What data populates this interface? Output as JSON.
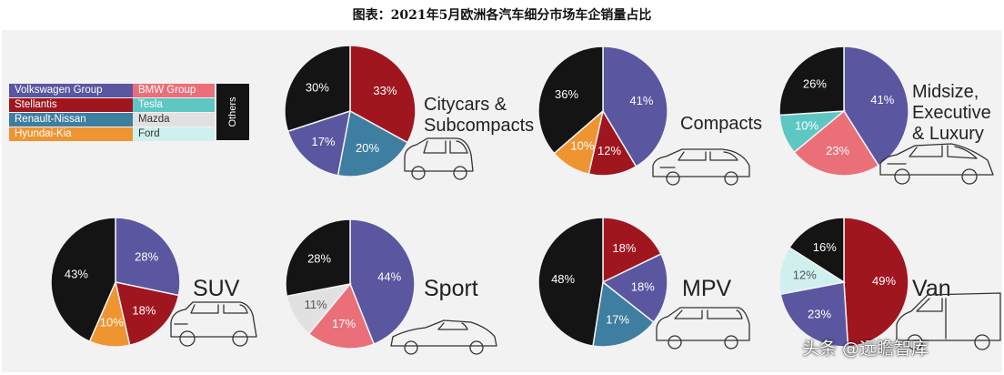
{
  "title": "图表：2021年5月欧洲各汽车细分市场车企销量占比",
  "legend": {
    "items": [
      {
        "label": "Volkswagen Group",
        "color": "#5a56a0"
      },
      {
        "label": "Stellantis",
        "color": "#a0161f"
      },
      {
        "label": "Renault-Nissan",
        "color": "#3e7ea0"
      },
      {
        "label": "Hyundai-Kia",
        "color": "#ee9431"
      },
      {
        "label": "BMW Group",
        "color": "#ea6f79"
      },
      {
        "label": "Tesla",
        "color": "#5ec6c3"
      },
      {
        "label": "Mazda",
        "color": "#e1e1e1"
      },
      {
        "label": "Ford",
        "color": "#d0f0ef"
      }
    ],
    "others_label": "Others",
    "others_color": "#141414"
  },
  "chart_data": [
    {
      "type": "pie",
      "title": "Citycars & Subcompacts",
      "slices": [
        {
          "name": "Stellantis",
          "value": 33
        },
        {
          "name": "Renault-Nissan",
          "value": 20
        },
        {
          "name": "Volkswagen Group",
          "value": 17
        },
        {
          "name": "Others",
          "value": 30
        }
      ]
    },
    {
      "type": "pie",
      "title": "Compacts",
      "slices": [
        {
          "name": "Volkswagen Group",
          "value": 41
        },
        {
          "name": "Stellantis",
          "value": 12
        },
        {
          "name": "Hyundai-Kia",
          "value": 10
        },
        {
          "name": "Others",
          "value": 36
        }
      ]
    },
    {
      "type": "pie",
      "title": "Midsize, Executive & Luxury",
      "slices": [
        {
          "name": "Volkswagen Group",
          "value": 41
        },
        {
          "name": "BMW Group",
          "value": 23
        },
        {
          "name": "Tesla",
          "value": 10
        },
        {
          "name": "Others",
          "value": 26
        }
      ]
    },
    {
      "type": "pie",
      "title": "SUV",
      "slices": [
        {
          "name": "Volkswagen Group",
          "value": 28
        },
        {
          "name": "Stellantis",
          "value": 18
        },
        {
          "name": "Hyundai-Kia",
          "value": 10
        },
        {
          "name": "Others",
          "value": 43
        }
      ]
    },
    {
      "type": "pie",
      "title": "Sport",
      "slices": [
        {
          "name": "Volkswagen Group",
          "value": 44
        },
        {
          "name": "BMW Group",
          "value": 17
        },
        {
          "name": "Mazda",
          "value": 11
        },
        {
          "name": "Others",
          "value": 28
        }
      ]
    },
    {
      "type": "pie",
      "title": "MPV",
      "slices": [
        {
          "name": "Stellantis",
          "value": 18
        },
        {
          "name": "Volkswagen Group",
          "value": 18
        },
        {
          "name": "Renault-Nissan",
          "value": 17
        },
        {
          "name": "Others",
          "value": 48
        }
      ]
    },
    {
      "type": "pie",
      "title": "Van",
      "slices": [
        {
          "name": "Stellantis",
          "value": 49
        },
        {
          "name": "Volkswagen Group",
          "value": 23
        },
        {
          "name": "Ford",
          "value": 12
        },
        {
          "name": "Others",
          "value": 16
        }
      ]
    }
  ],
  "watermark": "头条 @远瞻智库"
}
